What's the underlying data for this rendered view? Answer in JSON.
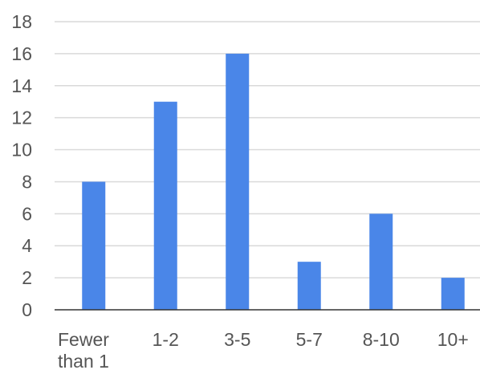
{
  "chart_data": {
    "type": "bar",
    "categories": [
      "Fewer than 1",
      "1-2",
      "3-5",
      "5-7",
      "8-10",
      "10+"
    ],
    "values": [
      8,
      13,
      16,
      3,
      6,
      2
    ],
    "yticks": [
      "0",
      "2",
      "4",
      "6",
      "8",
      "10",
      "12",
      "14",
      "16",
      "18"
    ],
    "ylim": [
      0,
      18
    ],
    "grid": true,
    "bar_color": "#4a86e8",
    "title": "",
    "xlabel": "",
    "ylabel": ""
  }
}
